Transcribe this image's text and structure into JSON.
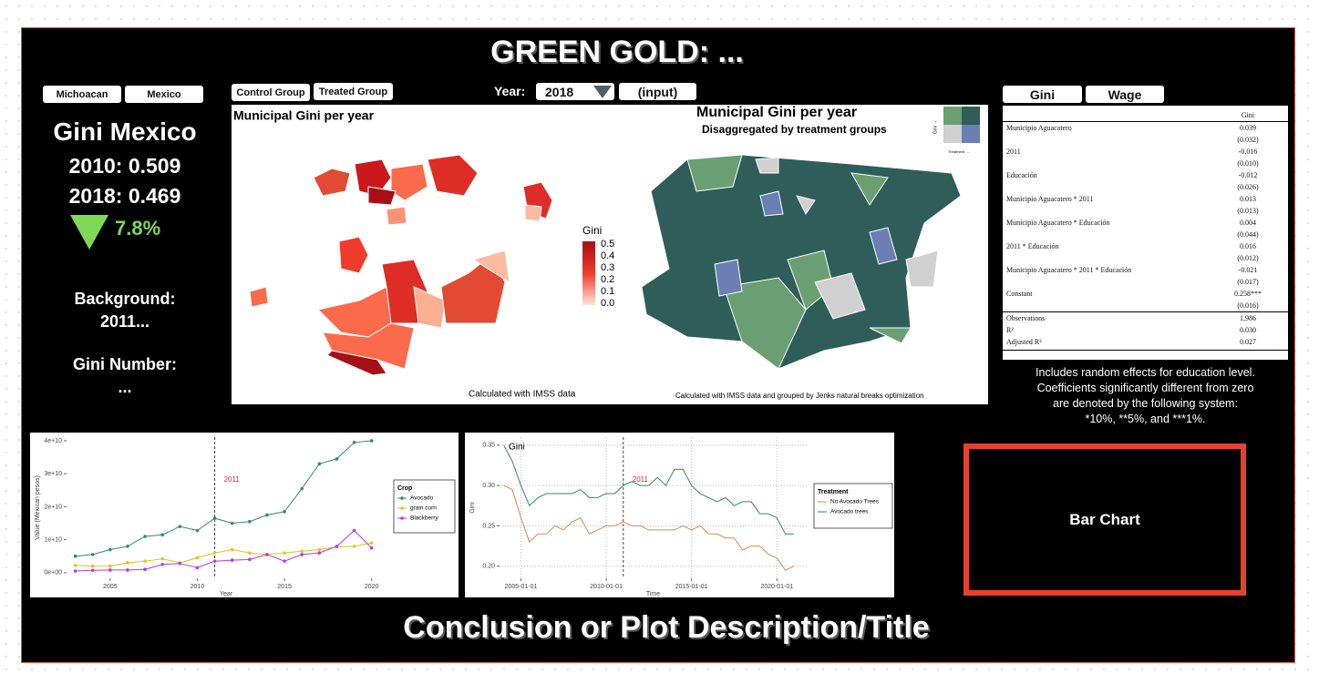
{
  "title": "GREEN GOLD: ...",
  "region_buttons": [
    "Michoacan",
    "Mexico"
  ],
  "group_buttons": [
    "Control Group",
    "Treated Group"
  ],
  "year_selector": {
    "label": "Year:",
    "value": "2018",
    "input": "(input)"
  },
  "table_buttons": [
    "Gini",
    "Wage"
  ],
  "stats": {
    "heading": "Gini Mexico",
    "lines": [
      "2010: 0.509",
      "2018: 0.469"
    ],
    "change": "7.8%",
    "background_label": "Background:",
    "background_text": "2011...",
    "gini_number_label": "Gini Number:",
    "gini_number_text": "..."
  },
  "map_left": {
    "title": "Municipal Gini per year",
    "legend_title": "Gini",
    "legend_ticks": [
      "0.5",
      "0.4",
      "0.3",
      "0.2",
      "0.1",
      "0.0"
    ],
    "caption": "Calculated with IMSS data"
  },
  "map_right": {
    "title": "Municipal Gini per year",
    "subtitle": "Disaggregated by treatment groups",
    "legend_y": "Gini →",
    "legend_x": "Treatment →",
    "caption": "Calculated with IMSS data and grouped by Jenks natural breaks optimization"
  },
  "regression_table": {
    "column": "Gini",
    "rows": [
      [
        "Municipio Aguacatero",
        "0.039",
        "(0.032)"
      ],
      [
        "2011",
        "-0.016",
        "(0.010)"
      ],
      [
        "Educación",
        "-0.012",
        "(0.026)"
      ],
      [
        "Municipio Aguacatero * 2011",
        "0.013",
        "(0.013)"
      ],
      [
        "Municipio Aguacatero * Educación",
        "0.004",
        "(0.044)"
      ],
      [
        "2011 * Educación",
        "0.016",
        "(0.012)"
      ],
      [
        "Municipio Aguacatero * 2011 * Educación",
        "-0.021",
        "(0.017)"
      ],
      [
        "Constant",
        "0.258***",
        "(0.016)"
      ]
    ],
    "stats": [
      [
        "Observations",
        "1,986"
      ],
      [
        "R²",
        "0.030"
      ],
      [
        "Adjusted R²",
        "0.027"
      ]
    ]
  },
  "note": [
    "Includes random effects for education level.",
    "Coefficients significantly different from zero",
    "are denoted by the following system:",
    "*10%, **5%, and ***1%."
  ],
  "bar_chart_placeholder": "Bar Chart",
  "footer": "Conclusion or Plot Description/Title",
  "chart_data": [
    {
      "type": "line",
      "xlabel": "Year",
      "ylabel": "Value (Mexican pesos)",
      "legend_title": "Crop",
      "grid": false,
      "markers": true,
      "x": [
        2003,
        2004,
        2005,
        2006,
        2007,
        2008,
        2009,
        2010,
        2011,
        2012,
        2013,
        2014,
        2015,
        2016,
        2017,
        2018,
        2019,
        2020
      ],
      "series": [
        {
          "name": "Avocado",
          "color": "#2e8b6f",
          "values": [
            5000000000,
            5500000000,
            7000000000,
            8000000000,
            11000000000,
            11500000000,
            14000000000,
            12800000000,
            16500000000,
            15000000000,
            15500000000,
            17500000000,
            18500000000,
            25500000000,
            33000000000,
            34500000000,
            39500000000,
            40000000000
          ]
        },
        {
          "name": "grain corn",
          "color": "#e6c21a",
          "values": [
            2200000000,
            2000000000,
            2000000000,
            3000000000,
            3500000000,
            4200000000,
            3000000000,
            4500000000,
            6000000000,
            7000000000,
            6000000000,
            5500000000,
            6000000000,
            6500000000,
            7000000000,
            7800000000,
            8000000000,
            9000000000
          ]
        },
        {
          "name": "Blackberry",
          "color": "#b23ce8",
          "values": [
            500000000,
            700000000,
            800000000,
            800000000,
            1000000000,
            2500000000,
            2800000000,
            1500000000,
            3500000000,
            3800000000,
            4000000000,
            5500000000,
            3500000000,
            5500000000,
            6000000000,
            8000000000,
            12800000000,
            7500000000
          ]
        }
      ],
      "xlim": [
        2002.5,
        2020.8
      ],
      "xticks": [
        2005,
        2010,
        2015,
        2020
      ],
      "ylim": [
        -1700000000,
        41100000000
      ],
      "yticks": [
        {
          "value": 0,
          "label": "0e+00"
        },
        {
          "value": 10000000000,
          "label": "1e+10"
        },
        {
          "value": 20000000000,
          "label": "2e+10"
        },
        {
          "value": 30000000000,
          "label": "3e+10"
        },
        {
          "value": 40000000000,
          "label": "4e+10"
        }
      ],
      "annotation": {
        "text": "2011",
        "x": 2011
      }
    },
    {
      "type": "line",
      "xlabel": "Time",
      "ylabel": "Gini",
      "legend_title": "Treatment",
      "grid": true,
      "markers": false,
      "inset_label": "Gini",
      "x": [
        "2004-01-01",
        "2004-07-01",
        "2005-01-01",
        "2005-07-01",
        "2006-01-01",
        "2006-07-01",
        "2007-01-01",
        "2007-07-01",
        "2008-01-01",
        "2008-07-01",
        "2009-01-01",
        "2009-07-01",
        "2010-01-01",
        "2010-07-01",
        "2011-01-01",
        "2011-07-01",
        "2012-01-01",
        "2012-07-01",
        "2013-01-01",
        "2013-07-01",
        "2014-01-01",
        "2014-07-01",
        "2015-01-01",
        "2015-07-01",
        "2016-01-01",
        "2016-07-01",
        "2017-01-01",
        "2017-07-01",
        "2018-01-01",
        "2018-07-01",
        "2019-01-01",
        "2019-07-01",
        "2020-01-01",
        "2020-07-01",
        "2021-01-01"
      ],
      "series": [
        {
          "name": "No Avocado Trees",
          "color": "#d9894a",
          "values": [
            0.3,
            0.295,
            0.26,
            0.23,
            0.24,
            0.24,
            0.25,
            0.245,
            0.255,
            0.26,
            0.24,
            0.245,
            0.25,
            0.25,
            0.255,
            0.25,
            0.25,
            0.245,
            0.245,
            0.245,
            0.245,
            0.25,
            0.245,
            0.25,
            0.24,
            0.24,
            0.235,
            0.235,
            0.22,
            0.225,
            0.225,
            0.215,
            0.21,
            0.195,
            0.2
          ]
        },
        {
          "name": "Avocado trees",
          "color": "#2e8b57",
          "values": [
            0.35,
            0.33,
            0.3,
            0.275,
            0.285,
            0.29,
            0.29,
            0.29,
            0.29,
            0.295,
            0.285,
            0.285,
            0.29,
            0.29,
            0.3,
            0.305,
            0.3,
            0.3,
            0.31,
            0.3,
            0.32,
            0.32,
            0.3,
            0.29,
            0.285,
            0.28,
            0.285,
            0.275,
            0.28,
            0.28,
            0.265,
            0.265,
            0.26,
            0.24,
            0.24
          ]
        }
      ],
      "xlim": [
        "2003-10-01",
        "2021-10-01"
      ],
      "xticks": [
        "2005-01-01",
        "2010-01-01",
        "2015-01-01",
        "2020-01-01"
      ],
      "ylim": [
        0.185,
        0.36
      ],
      "yticks": [
        {
          "value": 0.2,
          "label": "0.20"
        },
        {
          "value": 0.25,
          "label": "0.25"
        },
        {
          "value": 0.3,
          "label": "0.30"
        },
        {
          "value": 0.35,
          "label": "0.35"
        }
      ],
      "annotation": {
        "text": "2011",
        "x": "2011-01-01"
      }
    }
  ]
}
